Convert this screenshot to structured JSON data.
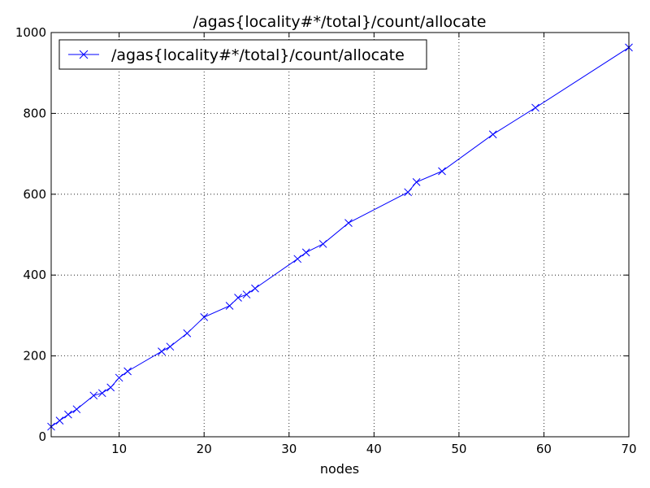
{
  "chart_data": {
    "type": "line",
    "title": "/agas{locality#*/total}/count/allocate",
    "xlabel": "nodes",
    "ylabel": "",
    "xlim": [
      2,
      70
    ],
    "ylim": [
      0,
      1000
    ],
    "x_ticks": [
      10,
      20,
      30,
      40,
      50,
      60,
      70
    ],
    "y_ticks": [
      0,
      200,
      400,
      600,
      800,
      1000
    ],
    "grid": true,
    "legend_position": "top-left",
    "series": [
      {
        "name": "/agas{locality#*/total}/count/allocate",
        "color": "#0000ff",
        "marker": "x",
        "x": [
          2,
          3,
          4,
          5,
          7,
          8,
          9,
          10,
          11,
          15,
          16,
          18,
          20,
          23,
          24,
          25,
          26,
          31,
          32,
          34,
          37,
          44,
          45,
          48,
          54,
          59,
          70
        ],
        "y": [
          25,
          40,
          55,
          68,
          102,
          108,
          122,
          146,
          162,
          211,
          223,
          256,
          296,
          324,
          344,
          352,
          367,
          440,
          456,
          477,
          529,
          605,
          630,
          657,
          748,
          814,
          963
        ]
      }
    ]
  }
}
